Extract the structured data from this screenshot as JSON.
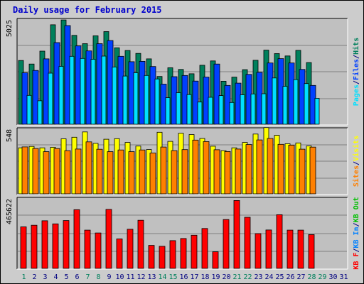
{
  "title": "Daily usage for February 2015",
  "colors": {
    "hits": "#00805c",
    "files": "#0040ff",
    "pages": "#00e0ff",
    "visits": "#ffff00",
    "sites": "#ff8000",
    "kbin": "#0080ff",
    "kbout": "#00c000",
    "kbf": "#ff0000",
    "weekend": "#00805c",
    "weekday": "#000080",
    "panel": "#c0c0c0",
    "frame": "#cccccc"
  },
  "chart_data": [
    {
      "type": "bar",
      "panel": "hits-files-pages",
      "axis_max_label": "5025",
      "ylim": [
        0,
        5025
      ],
      "legend": [
        {
          "label": "Pages",
          "color": "#00e0ff"
        },
        {
          "label": "/",
          "color": "#000080"
        },
        {
          "label": "Files",
          "color": "#0040ff"
        },
        {
          "label": "/",
          "color": "#000080"
        },
        {
          "label": "Hits",
          "color": "#00805c"
        }
      ],
      "x": [
        1,
        2,
        3,
        4,
        5,
        6,
        7,
        8,
        9,
        10,
        11,
        12,
        13,
        14,
        15,
        16,
        17,
        18,
        19,
        20,
        21,
        22,
        23,
        24,
        25,
        26,
        27,
        28
      ],
      "series": [
        {
          "name": "Hits",
          "values": [
            3070,
            2900,
            3520,
            4790,
            5020,
            4280,
            3880,
            4260,
            4460,
            3680,
            3550,
            3410,
            3150,
            2300,
            2720,
            2640,
            2430,
            2840,
            3050,
            2070,
            2270,
            2630,
            3080,
            3570,
            3400,
            3290,
            3560,
            2970
          ]
        },
        {
          "name": "Files",
          "values": [
            2480,
            2590,
            3150,
            3930,
            4750,
            3770,
            3530,
            3880,
            4030,
            3270,
            3010,
            3030,
            2780,
            1930,
            2290,
            2350,
            2080,
            2270,
            2900,
            1870,
            1980,
            2400,
            2500,
            2950,
            3160,
            2950,
            2640,
            1870
          ]
        },
        {
          "name": "Pages",
          "values": [
            1390,
            1130,
            2460,
            2790,
            3270,
            3170,
            3130,
            3280,
            2760,
            2320,
            2480,
            2350,
            2180,
            1280,
            1520,
            1430,
            1070,
            1300,
            1380,
            1050,
            1420,
            1460,
            1470,
            2230,
            1830,
            2150,
            1960,
            1250
          ]
        }
      ]
    },
    {
      "type": "bar",
      "panel": "visits-sites",
      "axis_max_label": "548",
      "ylim": [
        0,
        548
      ],
      "legend": [
        {
          "label": "Sites",
          "color": "#ff8000"
        },
        {
          "label": "/",
          "color": "#000080"
        },
        {
          "label": "Visits",
          "color": "#ffff00"
        }
      ],
      "x": [
        1,
        2,
        3,
        4,
        5,
        6,
        7,
        8,
        9,
        10,
        11,
        12,
        13,
        14,
        15,
        16,
        17,
        18,
        19,
        20,
        21,
        22,
        23,
        24,
        25,
        26,
        27,
        28
      ],
      "series": [
        {
          "name": "Visits",
          "values": [
            390,
            402,
            390,
            395,
            467,
            480,
            525,
            428,
            463,
            468,
            436,
            405,
            376,
            522,
            445,
            514,
            503,
            470,
            404,
            366,
            390,
            436,
            507,
            562,
            496,
            425,
            432,
            406
          ]
        },
        {
          "name": "Sites",
          "values": [
            398,
            385,
            358,
            384,
            366,
            380,
            441,
            378,
            358,
            372,
            358,
            372,
            346,
            397,
            366,
            375,
            456,
            443,
            374,
            359,
            380,
            418,
            457,
            470,
            420,
            413,
            379,
            396
          ]
        }
      ]
    },
    {
      "type": "bar",
      "panel": "kbf-kbin-kbout",
      "axis_max_label": "465622",
      "ylim": [
        0,
        465622
      ],
      "legend": [
        {
          "label": "KB F",
          "color": "#ff0000"
        },
        {
          "label": "/",
          "color": "#000080"
        },
        {
          "label": "KB In",
          "color": "#0080ff"
        },
        {
          "label": "/",
          "color": "#000080"
        },
        {
          "label": "KB Out",
          "color": "#00c000"
        }
      ],
      "x": [
        1,
        2,
        3,
        4,
        5,
        6,
        7,
        8,
        9,
        10,
        11,
        12,
        13,
        14,
        15,
        16,
        17,
        18,
        19,
        20,
        21,
        22,
        23,
        24,
        25,
        26,
        27,
        28
      ],
      "series": [
        {
          "name": "KB F",
          "values": [
            278000,
            289000,
            319000,
            298000,
            320000,
            393000,
            256000,
            237000,
            395000,
            197000,
            262000,
            322000,
            154000,
            148000,
            186000,
            200000,
            222000,
            267000,
            111000,
            327000,
            454000,
            342000,
            233000,
            257000,
            359000,
            256000,
            256000,
            226000
          ]
        }
      ]
    }
  ],
  "days": [
    "1",
    "2",
    "3",
    "4",
    "5",
    "6",
    "7",
    "8",
    "9",
    "10",
    "11",
    "12",
    "13",
    "14",
    "15",
    "16",
    "17",
    "18",
    "19",
    "20",
    "21",
    "22",
    "23",
    "24",
    "25",
    "26",
    "27",
    "28",
    "29",
    "30",
    "31"
  ],
  "weekend_days": [
    1,
    7,
    8,
    14,
    15,
    21,
    22,
    28,
    29
  ]
}
